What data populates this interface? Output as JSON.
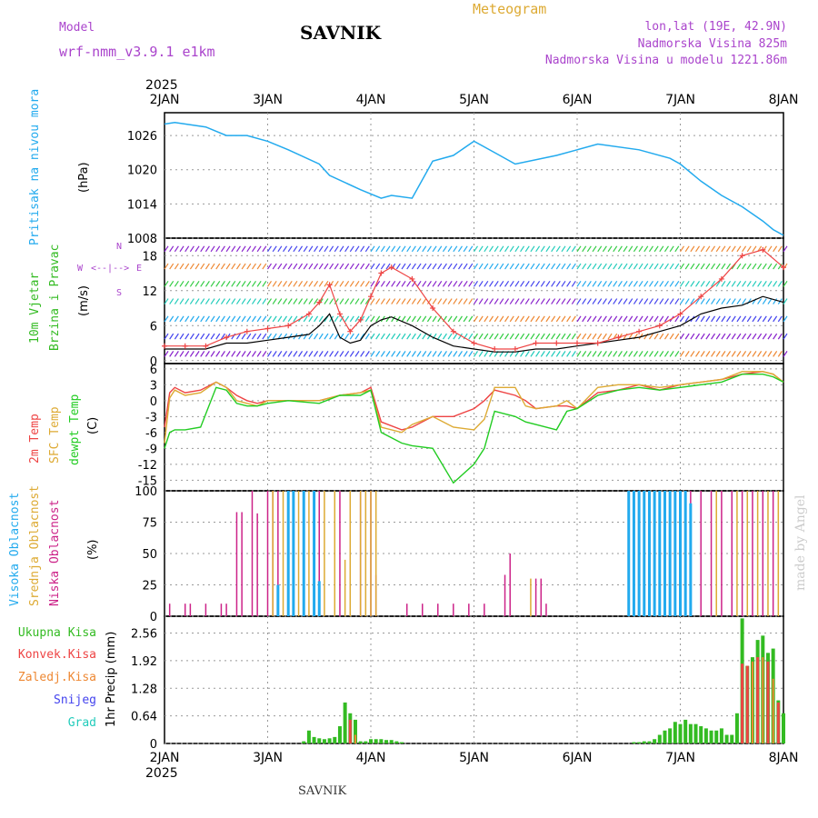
{
  "header": {
    "model_label": "Model",
    "model_name": "wrf-nmm_v3.9.1 e1km",
    "station": "SAVNIK",
    "product": "Meteogram",
    "coords": "lon,lat (19E, 42.9N)",
    "elevation": "Nadmorska Visina 825m",
    "model_elevation": "Nadmorska Visina u modelu 1221.86m",
    "watermark": "made by Angel",
    "footer": "SAVNIK",
    "year_top": "2025",
    "year_bottom": "2025"
  },
  "colors": {
    "pressure": "#22aaee",
    "t2m": "#ee4444",
    "sfc": "#ddaa33",
    "dewpt": "#22cc22",
    "cloud_high": "#22aaee",
    "cloud_mid": "#ddaa33",
    "cloud_low": "#cc2288",
    "total_precip": "#33bb22",
    "conv_precip": "#ee4444",
    "frozen": "#ee8833",
    "snow": "#4444ee",
    "hail": "#22ccbb",
    "wind_speed": "#000000",
    "wind_gust": "#ee4444",
    "axis_labels_purple": "#aa44cc"
  },
  "time_axis": {
    "labels": [
      "2JAN",
      "3JAN",
      "4JAN",
      "5JAN",
      "6JAN",
      "7JAN",
      "8JAN"
    ]
  },
  "panels": {
    "pressure": {
      "title": "Pritisak na nivou mora",
      "unit": "(hPa)",
      "ticks": [
        "1026",
        "1020",
        "1014",
        "1008"
      ]
    },
    "wind": {
      "title_line1": "10m Vjetar",
      "title_line2": "Brzina i Pravac",
      "unit": "(m/s)",
      "ticks": [
        "18",
        "12",
        "6",
        "0"
      ],
      "compass_n": "N",
      "compass_s": "S",
      "compass_w": "W",
      "compass_e": "E",
      "compass_arrows": "<--|-->"
    },
    "temp": {
      "title_t2m": "2m Temp",
      "title_sfc": "SFC Temp",
      "title_dew": "dewpt Temp",
      "unit": "(C)",
      "ticks": [
        "6",
        "3",
        "0",
        "-3",
        "-6",
        "-9",
        "-12",
        "-15"
      ]
    },
    "cloud": {
      "title_high": "Visoka Oblacnost",
      "title_mid": "Srednja Oblacnost",
      "title_low": "Niska Oblacnost",
      "unit": "(%)",
      "ticks": [
        "100",
        "75",
        "50",
        "25",
        "0"
      ]
    },
    "precip": {
      "legend": [
        "Ukupna Kisa",
        "Konvek.Kisa",
        "Zaledj.Kisa",
        "Snijeg",
        "Grad"
      ],
      "title": "1hr Precip (mm)",
      "ticks": [
        "2.56",
        "1.92",
        "1.28",
        "0.64",
        "0"
      ]
    }
  },
  "chart_data": [
    {
      "type": "line",
      "name": "pressure",
      "xlabel": "",
      "ylabel": "(hPa)",
      "ylim": [
        1008,
        1030
      ],
      "x": [
        0,
        0.1,
        0.4,
        0.6,
        0.8,
        1.0,
        1.2,
        1.5,
        1.6,
        1.9,
        2.1,
        2.2,
        2.4,
        2.6,
        2.8,
        3.0,
        3.2,
        3.4,
        3.8,
        4.0,
        4.2,
        4.6,
        4.9,
        5.0,
        5.2,
        5.4,
        5.6,
        5.8,
        5.9,
        6.0
      ],
      "series": [
        {
          "values": [
            1028,
            1028.3,
            1027.5,
            1026,
            1026,
            1025,
            1023.5,
            1021,
            1019,
            1016.5,
            1015,
            1015.5,
            1015,
            1021.5,
            1022.5,
            1025,
            1023,
            1021,
            1022.5,
            1023.5,
            1024.5,
            1023.5,
            1022,
            1021,
            1018,
            1015.5,
            1013.5,
            1011,
            1009.5,
            1008.5
          ]
        }
      ]
    },
    {
      "type": "line",
      "name": "10m wind",
      "ylabel": "(m/s)",
      "ylim": [
        -0.5,
        21
      ],
      "x": [
        0,
        0.2,
        0.4,
        0.6,
        0.8,
        1.0,
        1.2,
        1.4,
        1.5,
        1.6,
        1.7,
        1.8,
        1.9,
        2.0,
        2.1,
        2.2,
        2.4,
        2.6,
        2.8,
        3.0,
        3.2,
        3.4,
        3.6,
        3.8,
        4.0,
        4.2,
        4.4,
        4.6,
        4.8,
        5.0,
        5.2,
        5.4,
        5.6,
        5.8,
        6.0
      ],
      "series": [
        {
          "name": "speed",
          "values": [
            2,
            2,
            2,
            3,
            3,
            3.5,
            4,
            4.5,
            6,
            8,
            4,
            3,
            3.5,
            6,
            7,
            7.5,
            6,
            4,
            2.5,
            2,
            1.5,
            1.5,
            2,
            2,
            2.5,
            3,
            3.5,
            4,
            5,
            6,
            8,
            9,
            9.5,
            11,
            10
          ]
        },
        {
          "name": "gust",
          "values": [
            2.5,
            2.5,
            2.5,
            4,
            5,
            5.5,
            6,
            8,
            10,
            13,
            8,
            5,
            7,
            11,
            15,
            16,
            14,
            9,
            5,
            3,
            2,
            2,
            3,
            3,
            3,
            3,
            4,
            5,
            6,
            8,
            11,
            14,
            18,
            19,
            16
          ]
        }
      ]
    },
    {
      "type": "line",
      "name": "temperature",
      "ylabel": "(C)",
      "ylim": [
        -17,
        7
      ],
      "x": [
        0,
        0.05,
        0.1,
        0.2,
        0.35,
        0.5,
        0.6,
        0.7,
        0.8,
        0.9,
        1.0,
        1.2,
        1.5,
        1.7,
        1.9,
        2.0,
        2.1,
        2.3,
        2.4,
        2.6,
        2.8,
        3.0,
        3.1,
        3.2,
        3.4,
        3.5,
        3.6,
        3.8,
        3.9,
        4.0,
        4.2,
        4.4,
        4.6,
        4.8,
        5.0,
        5.2,
        5.4,
        5.6,
        5.8,
        5.9,
        6.0
      ],
      "series": [
        {
          "name": "2m Temp",
          "values": [
            -5,
            1.5,
            2.5,
            1.5,
            2,
            3.5,
            2.5,
            1,
            0,
            -0.5,
            0,
            0,
            0,
            1,
            1.5,
            2.5,
            -4,
            -5.5,
            -5,
            -3,
            -3,
            -1.5,
            0,
            2,
            1,
            0,
            -1.5,
            -1,
            -1,
            -1.5,
            1.5,
            2,
            3,
            2,
            3,
            3.5,
            4,
            5,
            5.5,
            5,
            3.5
          ]
        },
        {
          "name": "SFC Temp",
          "values": [
            -8,
            0.5,
            2,
            1,
            1.5,
            3.5,
            2.5,
            0,
            -0.5,
            -1,
            0,
            0,
            0,
            1,
            1.5,
            2,
            -5,
            -6,
            -4.5,
            -3,
            -5,
            -5.5,
            -3.5,
            2.5,
            2.5,
            -1,
            -1.5,
            -1,
            0,
            -1.5,
            2.5,
            3,
            3,
            2.5,
            3,
            3.5,
            4,
            5.5,
            5.5,
            5,
            3.5
          ]
        },
        {
          "name": "dewpt Temp",
          "values": [
            -9,
            -6,
            -5.5,
            -5.5,
            -5,
            2.5,
            2,
            -0.5,
            -1,
            -1,
            -0.5,
            0,
            -0.5,
            1,
            1,
            2,
            -6,
            -8,
            -8.5,
            -9,
            -15.5,
            -12,
            -9,
            -2,
            -3,
            -4,
            -4.5,
            -5.5,
            -2,
            -1.5,
            1,
            2,
            2.5,
            2,
            2.5,
            3,
            3.5,
            5,
            5,
            4.5,
            3.5
          ]
        }
      ]
    },
    {
      "type": "bar",
      "name": "cloud cover",
      "ylabel": "(%)",
      "ylim": [
        0,
        100
      ],
      "series": [
        {
          "name": "Niska Oblacnost",
          "x": [
            0.05,
            0.2,
            0.25,
            0.4,
            0.55,
            0.6,
            0.7,
            0.75,
            0.85,
            0.9,
            1.0,
            1.05,
            1.1,
            1.25,
            1.5,
            1.7,
            1.9,
            2.0,
            2.05,
            2.35,
            2.5,
            2.65,
            2.8,
            2.95,
            3.1,
            3.3,
            3.35,
            3.6,
            3.65,
            3.7,
            4.8,
            4.9,
            5.0,
            5.1,
            5.2,
            5.3,
            5.4,
            5.5,
            5.6,
            5.7,
            5.8,
            5.9
          ],
          "values": [
            10,
            10,
            10,
            10,
            10,
            10,
            83,
            83,
            100,
            82,
            100,
            100,
            100,
            100,
            100,
            100,
            100,
            100,
            33,
            10,
            10,
            10,
            10,
            10,
            10,
            33,
            50,
            30,
            30,
            10,
            100,
            100,
            100,
            100,
            100,
            100,
            100,
            100,
            100,
            100,
            100,
            100
          ]
        },
        {
          "name": "Srednja Oblacnost",
          "x": [
            1.05,
            1.15,
            1.3,
            1.4,
            1.55,
            1.65,
            1.75,
            1.8,
            1.9,
            1.95,
            2.0,
            2.05,
            3.55,
            4.9,
            4.95,
            5.35,
            5.55,
            5.65,
            5.75,
            5.85,
            5.95
          ],
          "values": [
            100,
            100,
            100,
            100,
            100,
            100,
            45,
            100,
            100,
            100,
            100,
            100,
            30,
            75,
            100,
            100,
            100,
            100,
            100,
            100,
            100
          ]
        },
        {
          "name": "Visoka Oblacnost",
          "x": [
            1.1,
            1.2,
            1.25,
            1.35,
            1.45,
            1.5,
            4.5,
            4.55,
            4.6,
            4.65,
            4.7,
            4.75,
            4.8,
            4.85,
            4.9,
            4.95,
            5.0,
            5.05,
            5.1
          ],
          "values": [
            25,
            100,
            100,
            100,
            100,
            28,
            100,
            100,
            100,
            100,
            100,
            100,
            100,
            100,
            100,
            100,
            100,
            100,
            90
          ]
        }
      ]
    },
    {
      "type": "bar",
      "name": "1hr precipitation",
      "ylabel": "1hr Precip (mm)",
      "ylim": [
        0,
        2.95
      ],
      "series": [
        {
          "name": "Ukupna Kisa",
          "x": [
            1.35,
            1.4,
            1.45,
            1.5,
            1.55,
            1.6,
            1.65,
            1.7,
            1.75,
            1.8,
            1.85,
            1.9,
            1.95,
            2.0,
            2.05,
            2.1,
            2.15,
            2.2,
            2.25,
            2.3,
            4.55,
            4.6,
            4.65,
            4.7,
            4.75,
            4.8,
            4.85,
            4.9,
            4.95,
            5.0,
            5.05,
            5.1,
            5.15,
            5.2,
            5.25,
            5.3,
            5.35,
            5.4,
            5.45,
            5.5,
            5.55,
            5.6,
            5.65,
            5.7,
            5.75,
            5.8,
            5.85,
            5.9,
            5.95,
            6.0
          ],
          "values": [
            0.05,
            0.3,
            0.15,
            0.12,
            0.1,
            0.12,
            0.15,
            0.4,
            0.95,
            0.7,
            0.55,
            0.05,
            0.05,
            0.1,
            0.1,
            0.1,
            0.08,
            0.08,
            0.05,
            0.03,
            0.03,
            0.03,
            0.05,
            0.05,
            0.1,
            0.2,
            0.3,
            0.35,
            0.5,
            0.45,
            0.55,
            0.45,
            0.45,
            0.4,
            0.35,
            0.3,
            0.3,
            0.35,
            0.2,
            0.2,
            0.7,
            2.9,
            1.8,
            2.0,
            2.4,
            2.5,
            2.1,
            2.2,
            1.0,
            0.7
          ]
        },
        {
          "name": "Konvek.Kisa",
          "x": [
            1.8,
            5.6,
            5.65,
            5.75,
            5.85,
            5.95
          ],
          "values": [
            0.55,
            1.85,
            1.8,
            2.0,
            1.9,
            0.95
          ]
        },
        {
          "name": "Zaledj.Kisa",
          "x": [
            1.85,
            5.7,
            5.8,
            5.9
          ],
          "values": [
            0.2,
            1.9,
            2.0,
            1.5
          ]
        }
      ]
    }
  ]
}
